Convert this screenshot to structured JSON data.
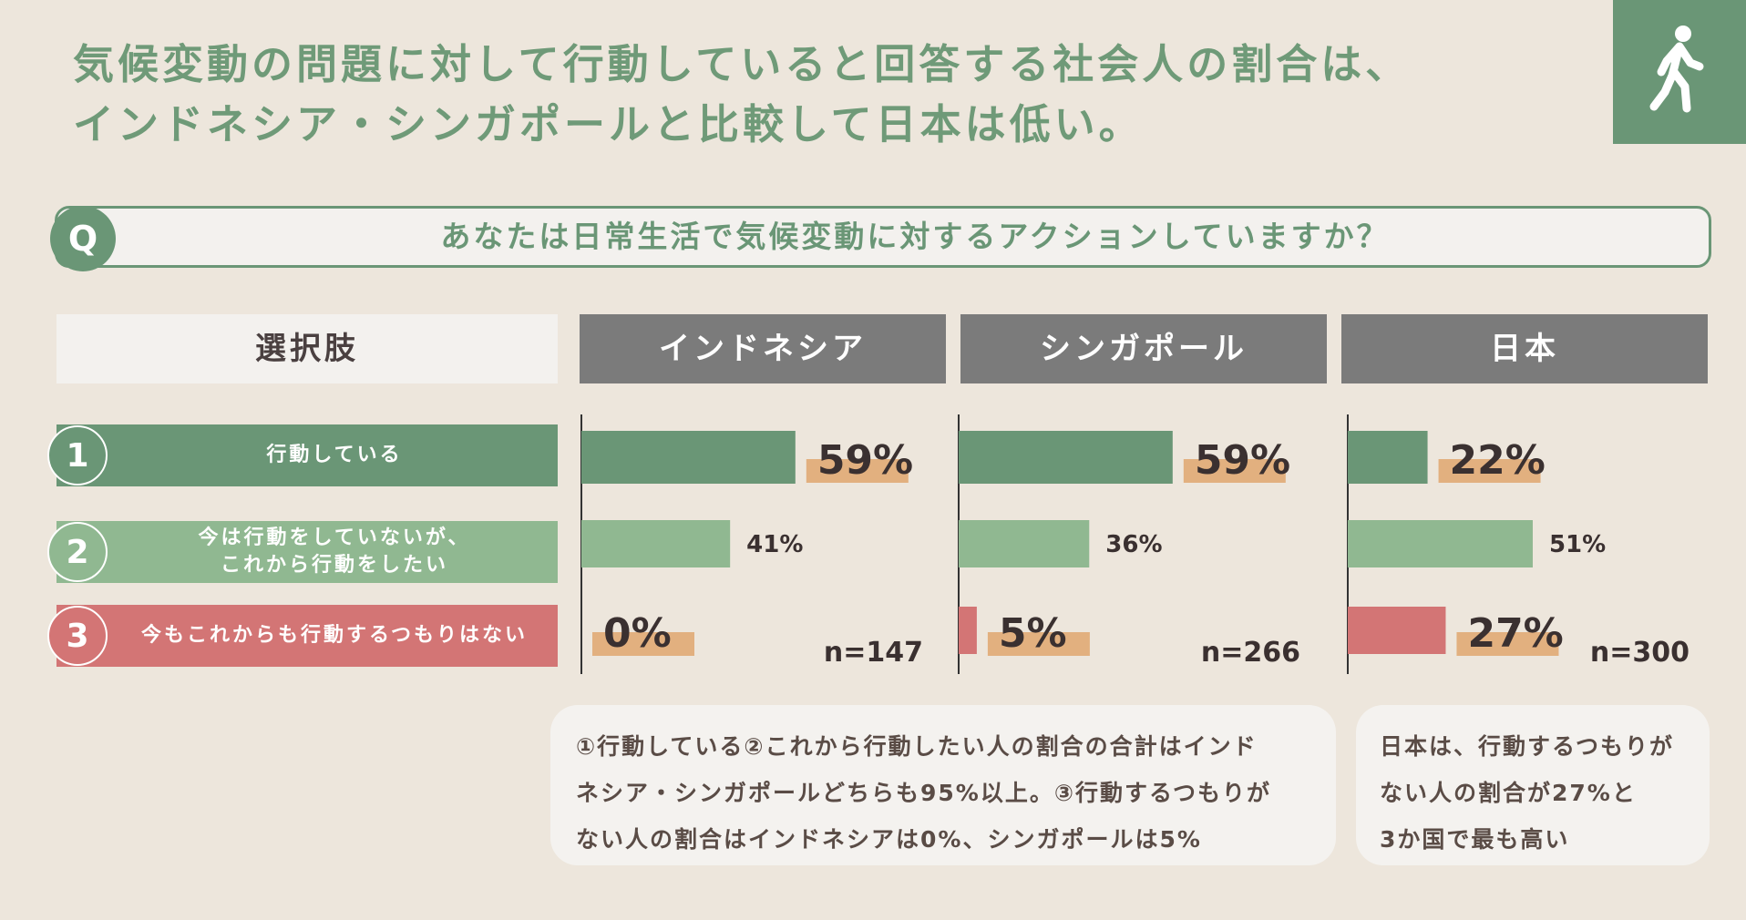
{
  "title": {
    "line1": "気候変動の問題に対して行動していると回答する社会人の割合は、",
    "line2": "インドネシア・シンガポールと比較して日本は低い。"
  },
  "question": {
    "badge": "Q",
    "text": "あなたは日常生活で気候変動に対するアクションしていますか？"
  },
  "headers": {
    "options": "選択肢",
    "countries": [
      "インドネシア",
      "シンガポール",
      "日本"
    ]
  },
  "options": [
    {
      "num": "1",
      "label": "行動している",
      "color": "#6a9676"
    },
    {
      "num": "2",
      "label": "今は行動をしていないが、\nこれから行動をしたい",
      "color": "#90b891"
    },
    {
      "num": "3",
      "label": "今もこれからも行動するつもりはない",
      "color": "#d37575"
    }
  ],
  "chart_data": {
    "type": "bar",
    "orientation": "horizontal",
    "categories": [
      "行動している",
      "今は行動をしていないが、これから行動をしたい",
      "今もこれからも行動するつもりはない"
    ],
    "series": [
      {
        "name": "インドネシア",
        "values": [
          59,
          41,
          0
        ],
        "labels": [
          "59%",
          "41%",
          "0%"
        ],
        "n": "n=147"
      },
      {
        "name": "シンガポール",
        "values": [
          59,
          36,
          5
        ],
        "labels": [
          "59%",
          "36%",
          "5%"
        ],
        "n": "n=266"
      },
      {
        "name": "日本",
        "values": [
          22,
          51,
          27
        ],
        "labels": [
          "22%",
          "51%",
          "27%"
        ],
        "n": "n=300"
      }
    ],
    "highlight_color": "#e2b07f",
    "xlim": [
      0,
      100
    ]
  },
  "notes": {
    "left": [
      "①行動している②これから行動したい人の割合の合計はインド",
      "ネシア・シンガポールどちらも95%以上。③行動するつもりが",
      "ない人の割合はインドネシアは0%、シンガポールは5%"
    ],
    "right": [
      "日本は、行動するつもりが",
      "ない人の割合が27%と",
      "3か国で最も高い"
    ]
  },
  "icons": {
    "walker": "walking-person-icon"
  }
}
